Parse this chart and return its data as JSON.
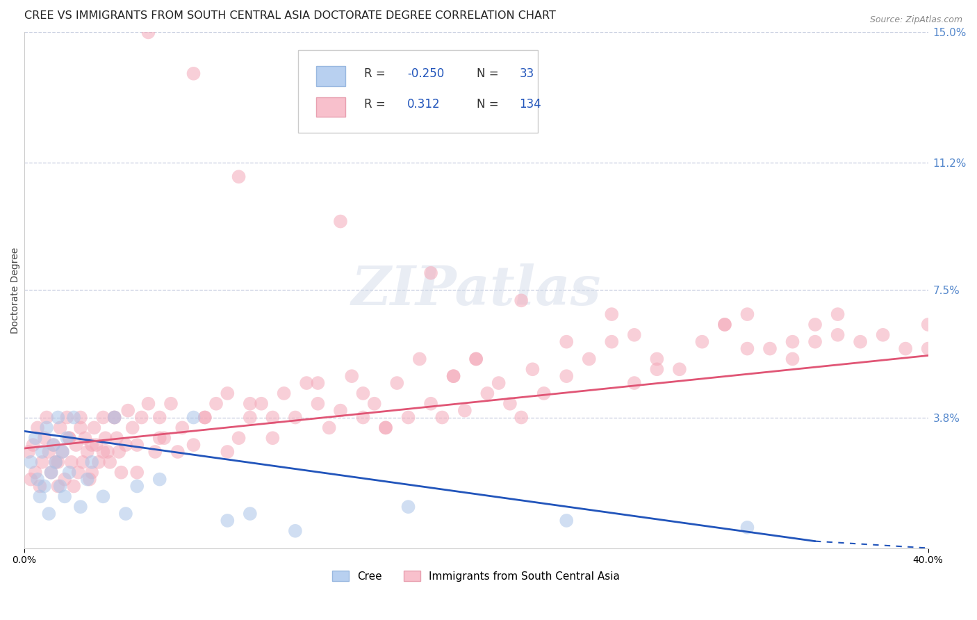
{
  "title": "CREE VS IMMIGRANTS FROM SOUTH CENTRAL ASIA DOCTORATE DEGREE CORRELATION CHART",
  "source": "Source: ZipAtlas.com",
  "ylabel": "Doctorate Degree",
  "xlim": [
    0,
    0.4
  ],
  "ylim": [
    0,
    0.15
  ],
  "ytick_right_labels": [
    "3.8%",
    "7.5%",
    "11.2%",
    "15.0%"
  ],
  "ytick_right_values": [
    0.038,
    0.075,
    0.112,
    0.15
  ],
  "cree_color": "#aac4e8",
  "immigrants_color": "#f4a8b8",
  "cree_line_color": "#2255bb",
  "immigrants_line_color": "#e05575",
  "watermark_text": "ZIPatlas",
  "legend_label_cree": "Cree",
  "legend_label_immigrants": "Immigrants from South Central Asia",
  "grid_color": "#c8cfe0",
  "background_color": "#ffffff",
  "title_fontsize": 11.5,
  "axis_label_fontsize": 10,
  "tick_fontsize": 10,
  "right_tick_color": "#5588cc",
  "legend_text_color": "#333333",
  "legend_value_color": "#2255bb",
  "cree_scatter_x": [
    0.003,
    0.005,
    0.006,
    0.007,
    0.008,
    0.009,
    0.01,
    0.011,
    0.012,
    0.013,
    0.014,
    0.015,
    0.016,
    0.017,
    0.018,
    0.019,
    0.02,
    0.022,
    0.025,
    0.028,
    0.03,
    0.035,
    0.04,
    0.045,
    0.05,
    0.06,
    0.075,
    0.09,
    0.1,
    0.12,
    0.17,
    0.24,
    0.32
  ],
  "cree_scatter_y": [
    0.025,
    0.032,
    0.02,
    0.015,
    0.028,
    0.018,
    0.035,
    0.01,
    0.022,
    0.03,
    0.025,
    0.038,
    0.018,
    0.028,
    0.015,
    0.032,
    0.022,
    0.038,
    0.012,
    0.02,
    0.025,
    0.015,
    0.038,
    0.01,
    0.018,
    0.02,
    0.038,
    0.008,
    0.01,
    0.005,
    0.012,
    0.008,
    0.006
  ],
  "imm_scatter_x": [
    0.002,
    0.003,
    0.004,
    0.005,
    0.006,
    0.007,
    0.008,
    0.009,
    0.01,
    0.011,
    0.012,
    0.013,
    0.014,
    0.015,
    0.016,
    0.017,
    0.018,
    0.019,
    0.02,
    0.021,
    0.022,
    0.023,
    0.024,
    0.025,
    0.026,
    0.027,
    0.028,
    0.029,
    0.03,
    0.031,
    0.032,
    0.033,
    0.035,
    0.036,
    0.037,
    0.038,
    0.04,
    0.041,
    0.042,
    0.043,
    0.045,
    0.046,
    0.048,
    0.05,
    0.052,
    0.055,
    0.058,
    0.06,
    0.062,
    0.065,
    0.068,
    0.07,
    0.075,
    0.08,
    0.085,
    0.09,
    0.095,
    0.1,
    0.105,
    0.11,
    0.115,
    0.12,
    0.125,
    0.13,
    0.135,
    0.14,
    0.145,
    0.15,
    0.155,
    0.16,
    0.165,
    0.17,
    0.175,
    0.18,
    0.185,
    0.19,
    0.195,
    0.2,
    0.205,
    0.21,
    0.215,
    0.22,
    0.225,
    0.23,
    0.24,
    0.25,
    0.26,
    0.27,
    0.28,
    0.29,
    0.3,
    0.31,
    0.32,
    0.33,
    0.34,
    0.35,
    0.36,
    0.37,
    0.38,
    0.39,
    0.4,
    0.015,
    0.02,
    0.025,
    0.03,
    0.035,
    0.04,
    0.05,
    0.06,
    0.08,
    0.1,
    0.13,
    0.16,
    0.2,
    0.24,
    0.28,
    0.32,
    0.36,
    0.09,
    0.11,
    0.15,
    0.19,
    0.26,
    0.31,
    0.35,
    0.4,
    0.055,
    0.075,
    0.095,
    0.14,
    0.18,
    0.22,
    0.27,
    0.34
  ],
  "imm_scatter_y": [
    0.028,
    0.02,
    0.03,
    0.022,
    0.035,
    0.018,
    0.025,
    0.032,
    0.038,
    0.028,
    0.022,
    0.03,
    0.025,
    0.018,
    0.035,
    0.028,
    0.02,
    0.038,
    0.032,
    0.025,
    0.018,
    0.03,
    0.022,
    0.038,
    0.025,
    0.032,
    0.028,
    0.02,
    0.022,
    0.035,
    0.03,
    0.025,
    0.038,
    0.032,
    0.028,
    0.025,
    0.038,
    0.032,
    0.028,
    0.022,
    0.03,
    0.04,
    0.035,
    0.03,
    0.038,
    0.042,
    0.028,
    0.038,
    0.032,
    0.042,
    0.028,
    0.035,
    0.03,
    0.038,
    0.042,
    0.045,
    0.032,
    0.038,
    0.042,
    0.032,
    0.045,
    0.038,
    0.048,
    0.042,
    0.035,
    0.04,
    0.05,
    0.038,
    0.042,
    0.035,
    0.048,
    0.038,
    0.055,
    0.042,
    0.038,
    0.05,
    0.04,
    0.055,
    0.045,
    0.048,
    0.042,
    0.038,
    0.052,
    0.045,
    0.05,
    0.055,
    0.06,
    0.048,
    0.055,
    0.052,
    0.06,
    0.065,
    0.068,
    0.058,
    0.06,
    0.065,
    0.068,
    0.06,
    0.062,
    0.058,
    0.065,
    0.025,
    0.032,
    0.035,
    0.03,
    0.028,
    0.038,
    0.022,
    0.032,
    0.038,
    0.042,
    0.048,
    0.035,
    0.055,
    0.06,
    0.052,
    0.058,
    0.062,
    0.028,
    0.038,
    0.045,
    0.05,
    0.068,
    0.065,
    0.06,
    0.058,
    0.15,
    0.138,
    0.108,
    0.095,
    0.08,
    0.072,
    0.062,
    0.055
  ]
}
